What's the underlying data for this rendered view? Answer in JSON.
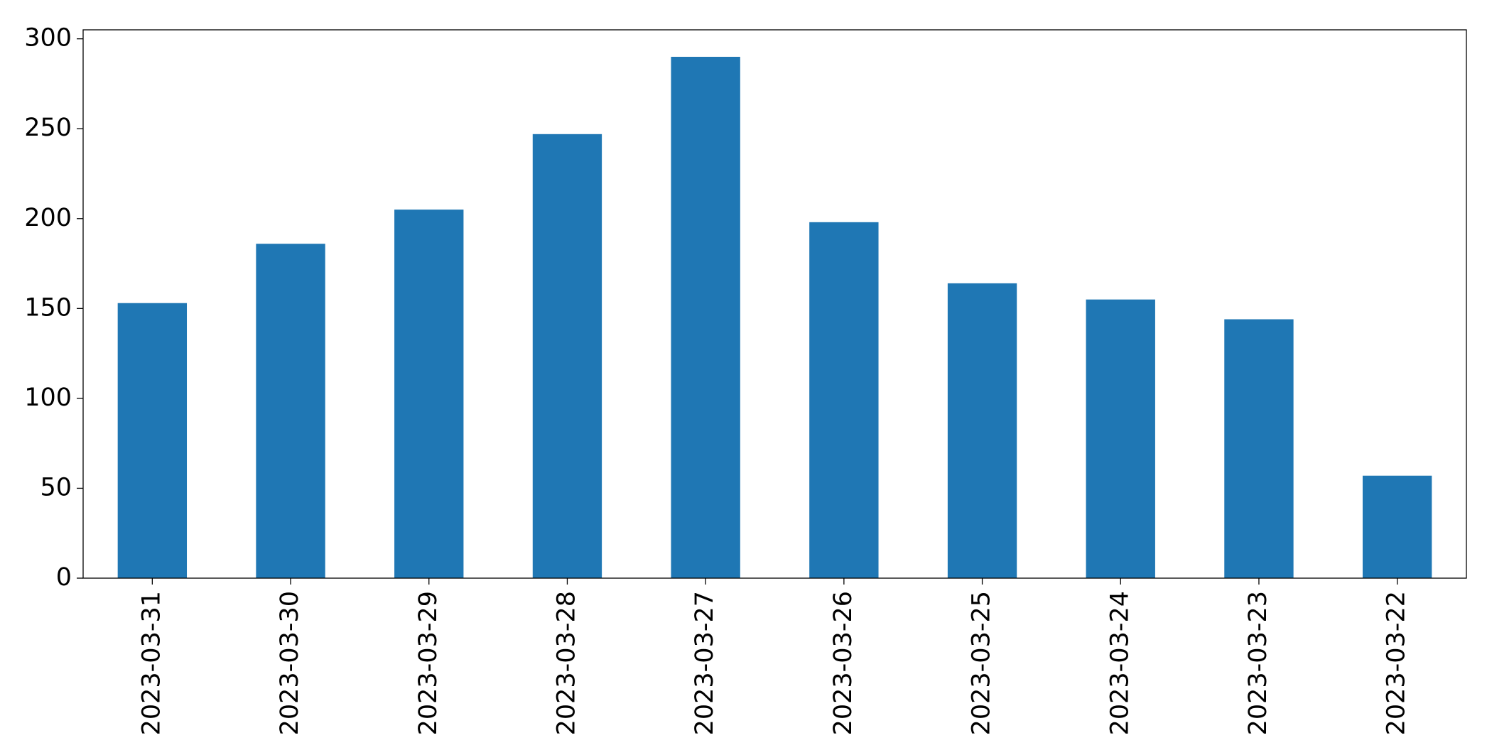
{
  "chart_data": {
    "type": "bar",
    "categories": [
      "2023-03-31",
      "2023-03-30",
      "2023-03-29",
      "2023-03-28",
      "2023-03-27",
      "2023-03-26",
      "2023-03-25",
      "2023-03-24",
      "2023-03-23",
      "2023-03-22"
    ],
    "values": [
      153,
      186,
      205,
      247,
      290,
      198,
      164,
      155,
      144,
      57
    ],
    "color": "#1f77b4",
    "ylim": [
      0,
      305
    ],
    "yticks": [
      0,
      50,
      100,
      150,
      200,
      250,
      300
    ],
    "grid": false
  }
}
